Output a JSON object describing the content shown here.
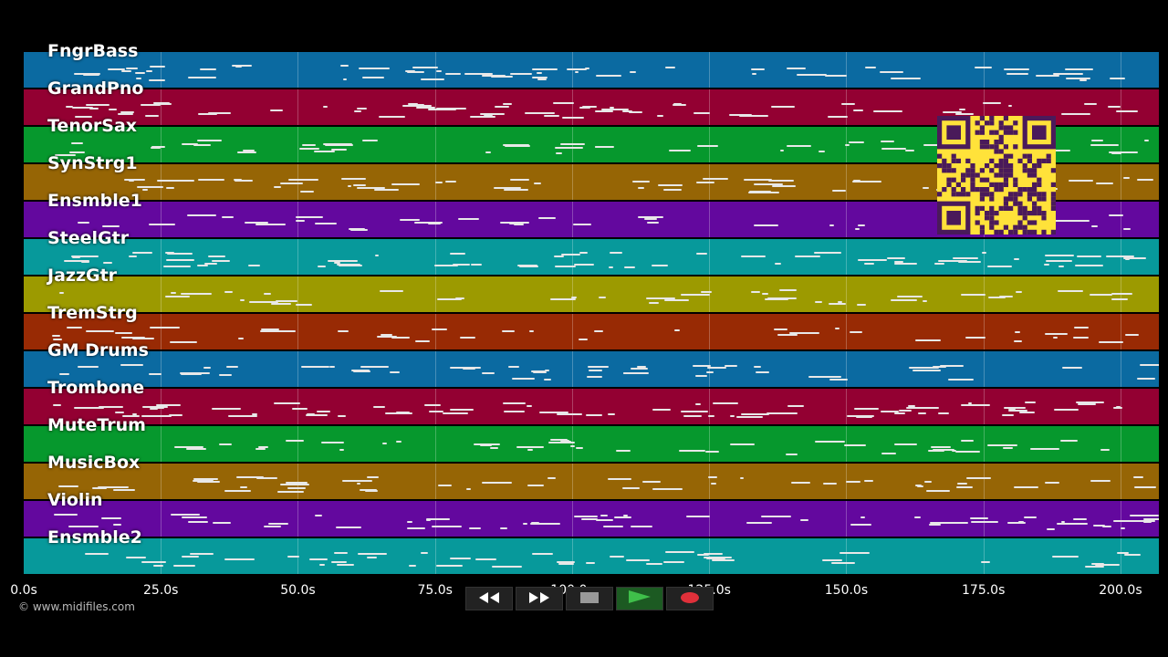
{
  "tracks": [
    {
      "name": "FngrBass",
      "color": "#0b6aa1"
    },
    {
      "name": "GrandPno",
      "color": "#930032"
    },
    {
      "name": "TenorSax",
      "color": "#06982d"
    },
    {
      "name": "SynStrg1",
      "color": "#966505"
    },
    {
      "name": "Ensmble1",
      "color": "#63089e"
    },
    {
      "name": "SteelGtr",
      "color": "#07999b"
    },
    {
      "name": "JazzGtr",
      "color": "#9c9a00"
    },
    {
      "name": "TremStrg",
      "color": "#982a04"
    },
    {
      "name": "GM Drums",
      "color": "#0b6aa1"
    },
    {
      "name": "Trombone",
      "color": "#930032"
    },
    {
      "name": "MuteTrum",
      "color": "#06982d"
    },
    {
      "name": "MusicBox",
      "color": "#966505"
    },
    {
      "name": "Violin",
      "color": "#63089e"
    },
    {
      "name": "Ensmble2",
      "color": "#07999b"
    }
  ],
  "time_axis": {
    "ticks": [
      "0.0s",
      "25.0s",
      "50.0s",
      "75.0s",
      "100.0s",
      "125.0s",
      "150.0s",
      "175.0s",
      "200.0s"
    ],
    "max_seconds": 207
  },
  "copyright": "© www.midifiles.com",
  "transport": {
    "rewind_icon": "rewind-icon",
    "fast_forward_icon": "fast-forward-icon",
    "stop_icon": "stop-icon",
    "play_icon": "play-icon",
    "record_icon": "record-icon",
    "play_color": "#3fbf4a",
    "record_color": "#e0303a"
  },
  "qr_code": {
    "color": "#ffe23a",
    "ink": "#4a1a5a"
  }
}
